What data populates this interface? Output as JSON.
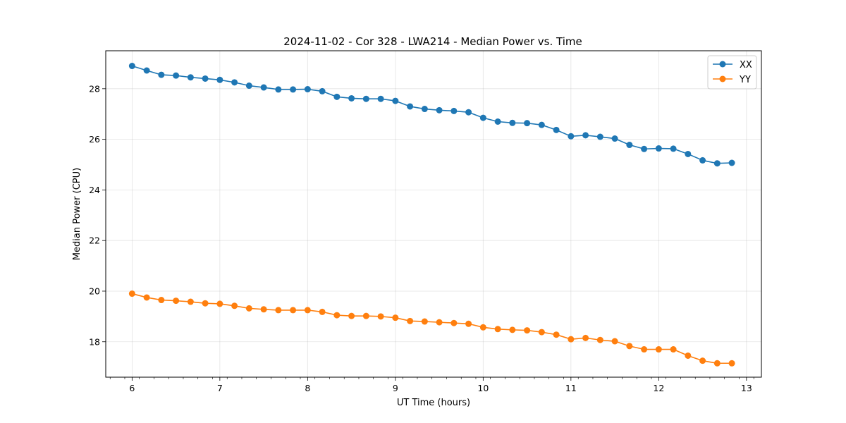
{
  "chart_data": {
    "type": "line",
    "title": "2024-11-02 - Cor 328 - LWA214 - Median Power vs. Time",
    "xlabel": "UT Time (hours)",
    "ylabel": "Median Power (CPU)",
    "xlim": [
      5.7,
      13.17
    ],
    "ylim": [
      16.6,
      29.5
    ],
    "xticks": [
      "6",
      "7",
      "8",
      "9",
      "10",
      "11",
      "12",
      "13"
    ],
    "yticks": [
      "18",
      "20",
      "22",
      "24",
      "26",
      "28"
    ],
    "grid": true,
    "legend_position": "top-right",
    "x": [
      6.0,
      6.1667,
      6.3333,
      6.5,
      6.6667,
      6.8333,
      7.0,
      7.1667,
      7.3333,
      7.5,
      7.6667,
      7.8333,
      8.0,
      8.1667,
      8.3333,
      8.5,
      8.6667,
      8.8333,
      9.0,
      9.1667,
      9.3333,
      9.5,
      9.6667,
      9.8333,
      10.0,
      10.1667,
      10.3333,
      10.5,
      10.6667,
      10.8333,
      11.0,
      11.1667,
      11.3333,
      11.5,
      11.6667,
      11.8333,
      12.0,
      12.1667,
      12.3333,
      12.5,
      12.6667,
      12.8333
    ],
    "series": [
      {
        "name": "XX",
        "color": "#1f77b4",
        "values": [
          28.9,
          28.72,
          28.55,
          28.52,
          28.45,
          28.4,
          28.35,
          28.25,
          28.12,
          28.05,
          27.97,
          27.97,
          27.98,
          27.9,
          27.68,
          27.62,
          27.6,
          27.6,
          27.52,
          27.3,
          27.2,
          27.15,
          27.12,
          27.07,
          26.85,
          26.7,
          26.65,
          26.64,
          26.57,
          26.37,
          26.12,
          26.16,
          26.1,
          26.03,
          25.78,
          25.62,
          25.64,
          25.63,
          25.42,
          25.17,
          25.05,
          25.07
        ]
      },
      {
        "name": "YY",
        "color": "#ff7f0e",
        "values": [
          19.9,
          19.75,
          19.65,
          19.62,
          19.58,
          19.52,
          19.5,
          19.42,
          19.32,
          19.28,
          19.25,
          19.25,
          19.25,
          19.18,
          19.05,
          19.02,
          19.02,
          19.0,
          18.95,
          18.82,
          18.8,
          18.77,
          18.74,
          18.71,
          18.57,
          18.5,
          18.47,
          18.45,
          18.38,
          18.28,
          18.1,
          18.15,
          18.07,
          18.02,
          17.83,
          17.7,
          17.7,
          17.7,
          17.45,
          17.25,
          17.15,
          17.15
        ]
      }
    ]
  }
}
